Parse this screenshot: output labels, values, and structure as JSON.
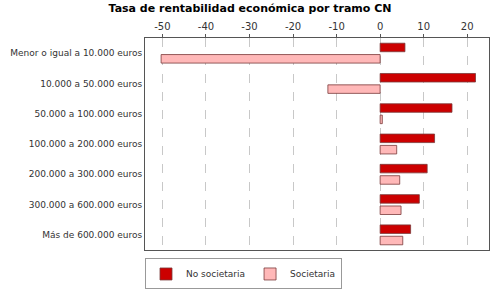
{
  "chart_data": {
    "type": "bar",
    "orientation": "horizontal",
    "title": "Tasa de rentabilidad económica por tramo CN",
    "categories": [
      "Menor o igual a 10.000 euros",
      "10.000 a 50.000 euros",
      "50.000 a 100.000 euros",
      "100.000 a 200.000 euros",
      "200.000 a 300.000 euros",
      "300.000 a 600.000 euros",
      "Más de 600.000 euros"
    ],
    "series": [
      {
        "name": "No societaria",
        "color": "#cc0000",
        "values": [
          5.7,
          21.9,
          16.5,
          12.5,
          10.8,
          9.0,
          7.0
        ]
      },
      {
        "name": "Societaria",
        "color": "#ffb8b8",
        "values": [
          -50.3,
          -12.0,
          0.5,
          3.8,
          4.5,
          4.8,
          5.2
        ]
      }
    ],
    "xlim": [
      -54,
      25
    ],
    "xticks": [
      -50,
      -40,
      -30,
      -20,
      -10,
      0,
      10,
      20
    ],
    "grid": true,
    "legend": "bottom"
  }
}
